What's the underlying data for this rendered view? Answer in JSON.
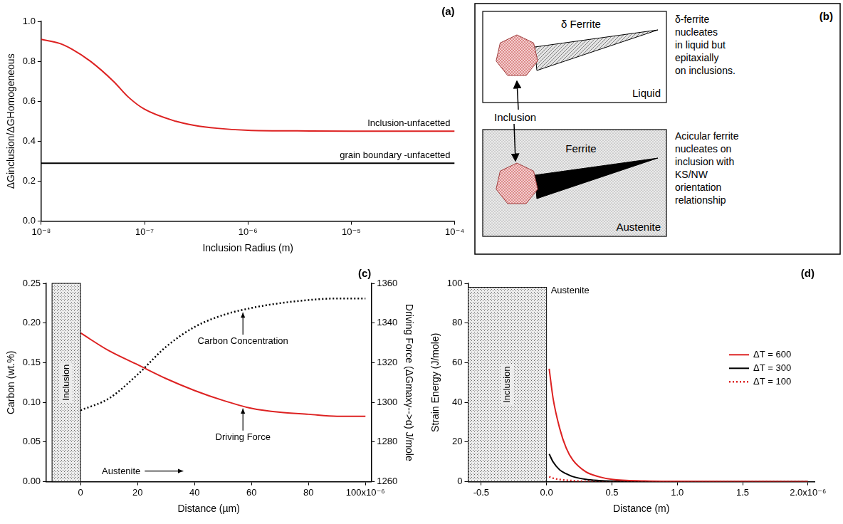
{
  "chart_data": [
    {
      "panel": "(a)",
      "type": "line",
      "log": "x",
      "grid": false,
      "x_label": "Inclusion Radius (m)",
      "y_label": "ΔGinclusion/ΔGHomogeneous",
      "xlim": [
        1e-08,
        0.0001
      ],
      "xticks": [
        {
          "value": 1e-08,
          "label": "10⁻⁸"
        },
        {
          "value": 1e-07,
          "label": "10⁻⁷"
        },
        {
          "value": 1e-06,
          "label": "10⁻⁶"
        },
        {
          "value": 1e-05,
          "label": "10⁻⁵"
        },
        {
          "value": 0.0001,
          "label": "10⁻⁴"
        }
      ],
      "ylim": [
        0,
        1
      ],
      "yticks": [
        {
          "value": 0,
          "label": "0.0"
        },
        0.2,
        0.4,
        0.6,
        0.8,
        {
          "value": 1,
          "label": "1.0"
        }
      ],
      "series": [
        {
          "name": "Inclusion-unfacetted",
          "color": "#dd2222",
          "line_style": "solid",
          "marker": "none",
          "x": [
            1e-08,
            1.5e-08,
            2e-08,
            3e-08,
            5e-08,
            7e-08,
            1e-07,
            2e-07,
            3e-07,
            5e-07,
            1e-06,
            3e-06,
            1e-05,
            0.0001
          ],
          "values": [
            0.91,
            0.89,
            0.86,
            0.8,
            0.7,
            0.62,
            0.56,
            0.5,
            0.48,
            0.465,
            0.455,
            0.452,
            0.45,
            0.45
          ]
        },
        {
          "name": "grain boundary -unfacetted",
          "color": "#000000",
          "line_style": "solid",
          "marker": "none",
          "x": [
            1e-08,
            0.0001
          ],
          "values": [
            0.29,
            0.29
          ]
        }
      ]
    },
    {
      "panel": "(c)",
      "type": "line",
      "grid": false,
      "x_label": "Distance (µm)",
      "y_label": "Carbon (wt.%)",
      "y2_label": "Driving Force (ΔGmaxγ-->α) J/mole",
      "xlim": [
        -12,
        102
      ],
      "xticks": [
        0,
        20,
        40,
        60,
        80,
        {
          "value": 100,
          "label": "100x10⁻⁶"
        }
      ],
      "ylim": [
        0,
        0.25
      ],
      "yticks": [
        {
          "value": 0,
          "label": "0.00"
        },
        0.05,
        {
          "value": 0.1,
          "label": "0.10"
        },
        0.15,
        {
          "value": 0.2,
          "label": "0.20"
        },
        0.25
      ],
      "y2lim": [
        1260,
        1360
      ],
      "y2ticks": [
        1260,
        1280,
        1300,
        1320,
        1340,
        1360
      ],
      "region": {
        "label": "Inclusion",
        "x": [
          -10,
          0
        ],
        "y": [
          0,
          0.25
        ]
      },
      "matrix": "Austenite",
      "series": [
        {
          "name": "Carbon Concentration",
          "color": "#000000",
          "line_style": "dotted",
          "marker": "none",
          "x": [
            0,
            10,
            20,
            30,
            40,
            50,
            60,
            70,
            80,
            90,
            100
          ],
          "values": [
            0.09,
            0.105,
            0.135,
            0.17,
            0.195,
            0.21,
            0.219,
            0.225,
            0.229,
            0.231,
            0.231
          ],
          "label_point": [
            57,
            0.216
          ]
        },
        {
          "name": "Driving Force",
          "color": "#dd2222",
          "line_style": "solid",
          "marker": "none",
          "axis": "y2",
          "x": [
            0,
            10,
            20,
            30,
            40,
            50,
            60,
            70,
            80,
            90,
            100
          ],
          "values": [
            1335,
            1326,
            1319,
            1312,
            1306,
            1301,
            1297,
            1295,
            1294,
            1293,
            1293
          ],
          "label_point": [
            57,
            1298
          ]
        }
      ]
    },
    {
      "panel": "(d)",
      "type": "line",
      "grid": false,
      "legend": "right",
      "x_label": "Distance (m)",
      "y_label": "Strain Energy (J/mole)",
      "xlim": [
        -0.6,
        2.05
      ],
      "xticks": [
        -0.5,
        {
          "value": 0,
          "label": "0.0"
        },
        0.5,
        {
          "value": 1,
          "label": "1.0"
        },
        1.5,
        {
          "value": 2,
          "label": "2.0x10⁻⁶"
        }
      ],
      "ylim": [
        0,
        100
      ],
      "yticks": [
        0,
        20,
        40,
        60,
        80,
        100
      ],
      "region": {
        "label": "Inclusion",
        "x": [
          -0.6,
          0
        ],
        "y": [
          0,
          98
        ]
      },
      "matrix": "Austenite",
      "series": [
        {
          "name": "ΔT = 600",
          "color": "#dd2222",
          "line_style": "solid",
          "marker": "none",
          "x": [
            0.02,
            0.05,
            0.1,
            0.15,
            0.2,
            0.3,
            0.4,
            0.5,
            0.75,
            1.0,
            1.5,
            2.0
          ],
          "values": [
            57,
            42,
            27,
            17,
            11,
            5,
            2.5,
            1.2,
            0.4,
            0.2,
            0.1,
            0
          ]
        },
        {
          "name": "ΔT = 300",
          "color": "#000000",
          "line_style": "solid",
          "marker": "none",
          "x": [
            0.02,
            0.05,
            0.1,
            0.15,
            0.2,
            0.3,
            0.4,
            0.5,
            1.0,
            2.0
          ],
          "values": [
            14,
            10,
            6,
            4,
            2.6,
            1.2,
            0.6,
            0.3,
            0,
            0
          ]
        },
        {
          "name": "ΔT = 100",
          "color": "#dd2222",
          "line_style": "dotted",
          "marker": "none",
          "x": [
            0.02,
            0.05,
            0.1,
            0.2,
            0.3,
            0.5,
            1.0,
            2.0
          ],
          "values": [
            2.5,
            1.8,
            1.1,
            0.5,
            0.2,
            0.1,
            0,
            0
          ]
        }
      ]
    }
  ],
  "diagram": {
    "panel": "(b)",
    "pointer": "Inclusion",
    "boxes": [
      {
        "phase": "δ Ferrite",
        "matrix": "Liquid",
        "caption": [
          "δ-ferrite",
          "nucleates",
          "in liquid but",
          "epitaxially",
          "on inclusions."
        ]
      },
      {
        "phase": "Ferrite",
        "matrix": "Austenite",
        "caption": [
          "Acicular ferrite",
          "nucleates on",
          "inclusion with",
          "KS/NW",
          "orientation",
          "relationship"
        ]
      }
    ]
  }
}
